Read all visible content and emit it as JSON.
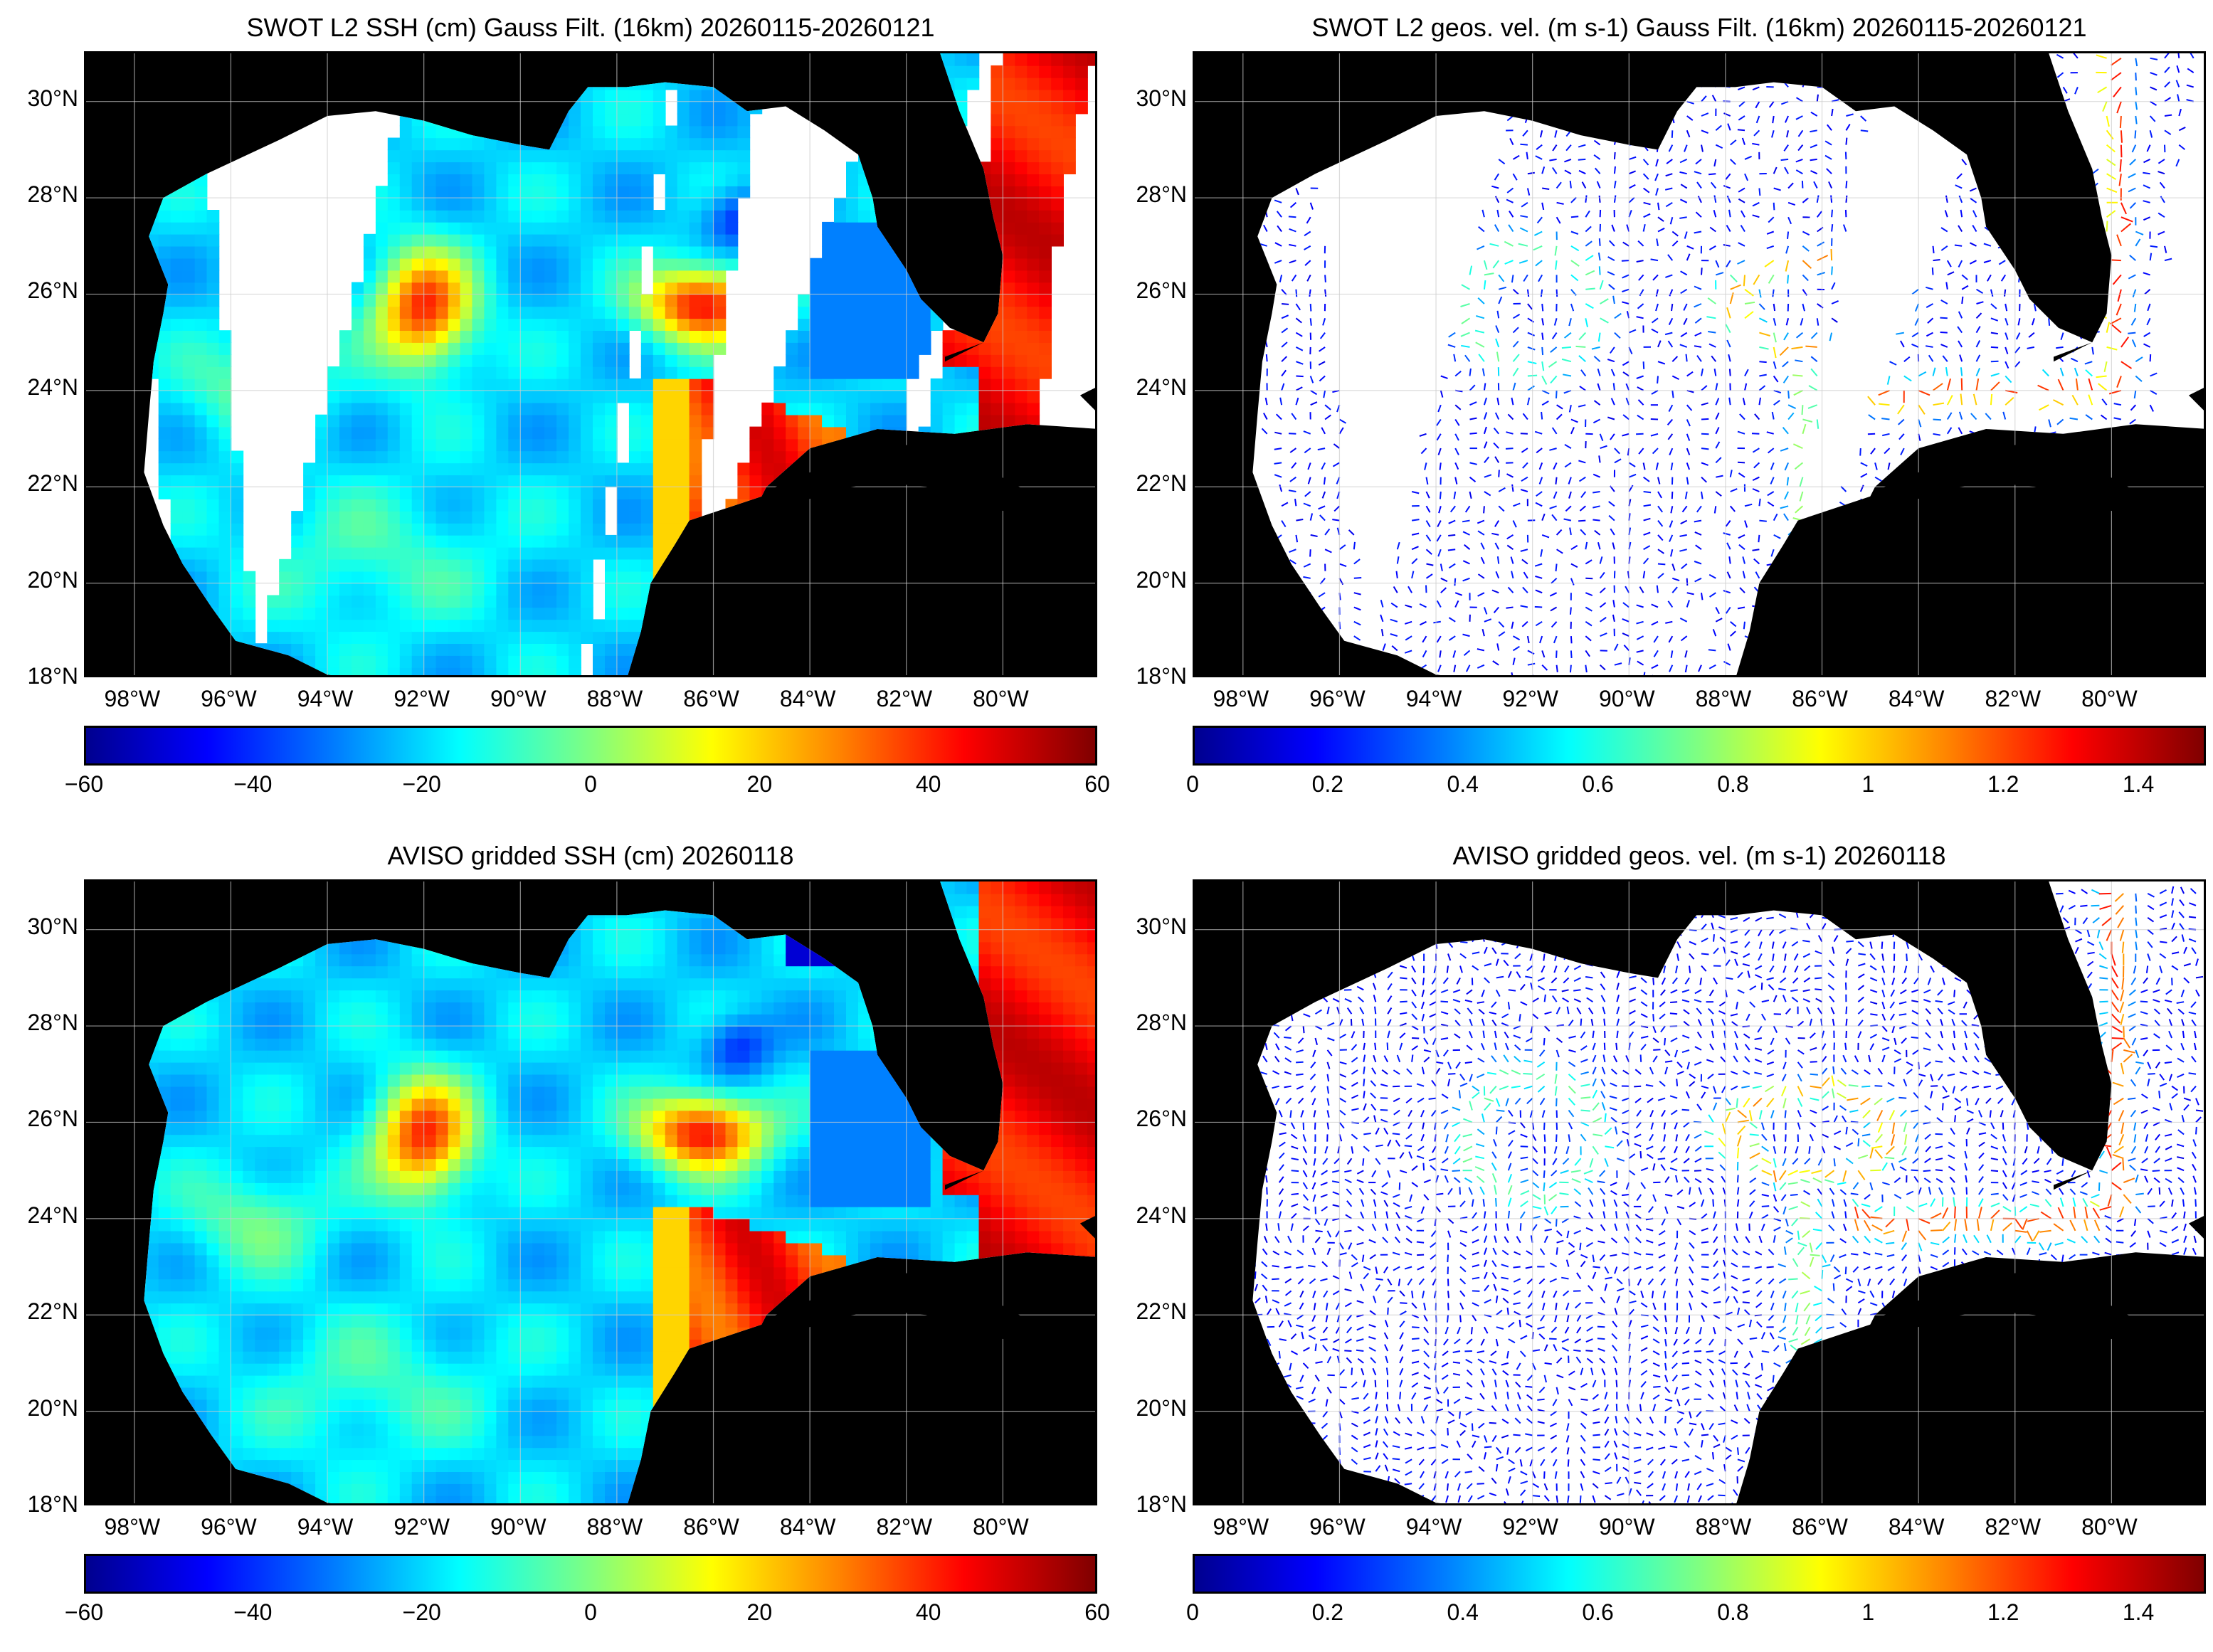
{
  "panels": [
    {
      "id": "swot-ssh",
      "title": "SWOT L2 SSH (cm) Gauss Filt. (16km) 20260115-20260121",
      "kind": "scalar-swaths",
      "colorbar": {
        "ticks": [
          "−60",
          "−40",
          "−20",
          "0",
          "20",
          "40",
          "60"
        ],
        "min": -60,
        "max": 60,
        "colormap": "jet"
      }
    },
    {
      "id": "swot-vel",
      "title": "SWOT L2 geos. vel. (m s-1) Gauss Filt. (16km) 20260115-20260121",
      "kind": "vector-swaths",
      "colorbar": {
        "ticks": [
          "0",
          "0.2",
          "0.4",
          "0.6",
          "0.8",
          "1",
          "1.2",
          "1.4"
        ],
        "min": 0,
        "max": 1.5,
        "colormap": "jet"
      }
    },
    {
      "id": "aviso-ssh",
      "title": "AVISO gridded SSH (cm) 20260118",
      "kind": "scalar-full",
      "colorbar": {
        "ticks": [
          "−60",
          "−40",
          "−20",
          "0",
          "20",
          "40",
          "60"
        ],
        "min": -60,
        "max": 60,
        "colormap": "jet"
      }
    },
    {
      "id": "aviso-vel",
      "title": "AVISO gridded geos. vel. (m s-1)  20260118",
      "kind": "vector-full",
      "colorbar": {
        "ticks": [
          "0",
          "0.2",
          "0.4",
          "0.6",
          "0.8",
          "1",
          "1.2",
          "1.4"
        ],
        "min": 0,
        "max": 1.5,
        "colormap": "jet"
      }
    }
  ],
  "axes": {
    "lat_labels": [
      "30°N",
      "28°N",
      "26°N",
      "24°N",
      "22°N",
      "20°N",
      "18°N"
    ],
    "lat_values": [
      30,
      28,
      26,
      24,
      22,
      20,
      18
    ],
    "lon_labels": [
      "98°W",
      "96°W",
      "94°W",
      "92°W",
      "90°W",
      "88°W",
      "86°W",
      "84°W",
      "82°W",
      "80°W"
    ],
    "lon_values": [
      -98,
      -96,
      -94,
      -92,
      -90,
      -88,
      -86,
      -84,
      -82,
      -80
    ],
    "lon_range": [
      -99,
      -78
    ],
    "lat_range": [
      18,
      31
    ]
  },
  "colors": {
    "land": "#000000",
    "nodata": "#ffffff",
    "grid": "#cccccc"
  }
}
